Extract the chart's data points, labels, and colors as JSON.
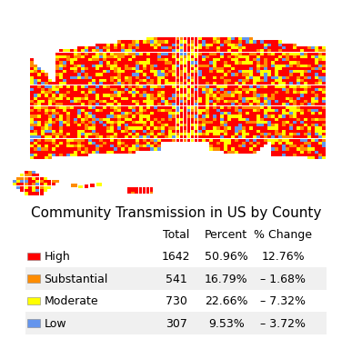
{
  "title": "Community Transmission in US by County",
  "table_headers": [
    "",
    "Total",
    "Percent",
    "% Change"
  ],
  "table_rows": [
    [
      "High",
      "1642",
      "50.96%",
      "12.76%"
    ],
    [
      "Substantial",
      "541",
      "16.79%",
      "– 1.68%"
    ],
    [
      "Moderate",
      "730",
      "22.66%",
      "– 7.32%"
    ],
    [
      "Low",
      "307",
      "9.53%",
      "– 3.72%"
    ]
  ],
  "row_colors": [
    "#FF0000",
    "#FF8C00",
    "#FFFF00",
    "#6495ED"
  ],
  "row_bg_colors": [
    "#FFFFFF",
    "#F0F0F0",
    "#FFFFFF",
    "#F0F0F0"
  ],
  "background_color": "#FFFFFF",
  "map_colors": [
    "#FF0000",
    "#FF8C00",
    "#FFFF00",
    "#6495ED"
  ],
  "weights_raw": [
    0.5096,
    0.1679,
    0.2266,
    0.0953
  ],
  "title_fontsize": 11,
  "table_fontsize": 9,
  "fig_width": 4.74,
  "fig_height": 4.74
}
